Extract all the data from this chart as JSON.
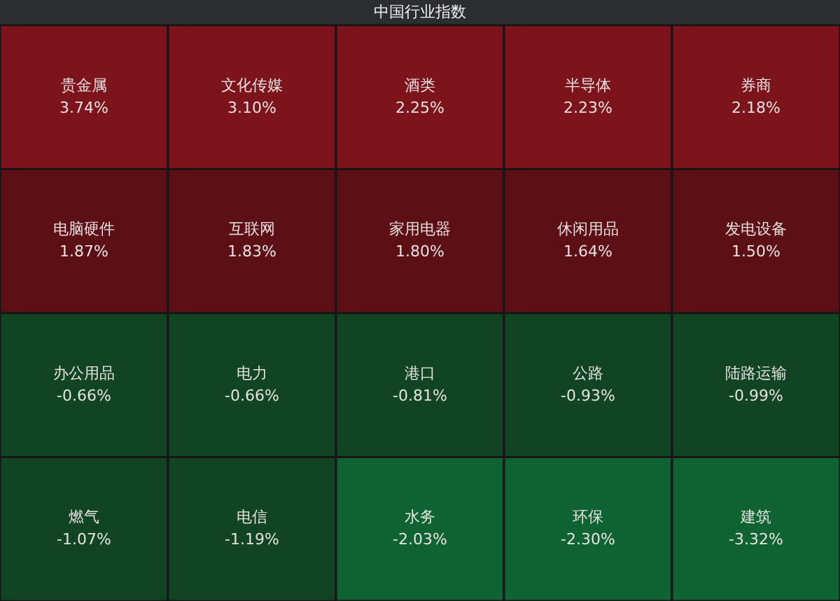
{
  "chart_data": {
    "type": "other",
    "title": "中国行业指数",
    "categories": [
      "贵金属",
      "文化传媒",
      "酒类",
      "半导体",
      "券商",
      "电脑硬件",
      "互联网",
      "家用电器",
      "休闲用品",
      "发电设备",
      "办公用品",
      "电力",
      "港口",
      "公路",
      "陆路运输",
      "燃气",
      "电信",
      "水务",
      "环保",
      "建筑"
    ],
    "values": [
      3.74,
      3.1,
      2.25,
      2.23,
      2.18,
      1.87,
      1.83,
      1.8,
      1.64,
      1.5,
      -0.66,
      -0.66,
      -0.81,
      -0.93,
      -0.99,
      -1.07,
      -1.19,
      -2.03,
      -2.3,
      -3.32
    ],
    "value_labels": [
      "3.74%",
      "3.10%",
      "2.25%",
      "2.23%",
      "2.18%",
      "1.87%",
      "1.83%",
      "1.80%",
      "1.64%",
      "1.50%",
      "-0.66%",
      "-0.66%",
      "-0.81%",
      "-0.93%",
      "-0.99%",
      "-1.07%",
      "-1.19%",
      "-2.03%",
      "-2.30%",
      "-3.32%"
    ]
  }
}
